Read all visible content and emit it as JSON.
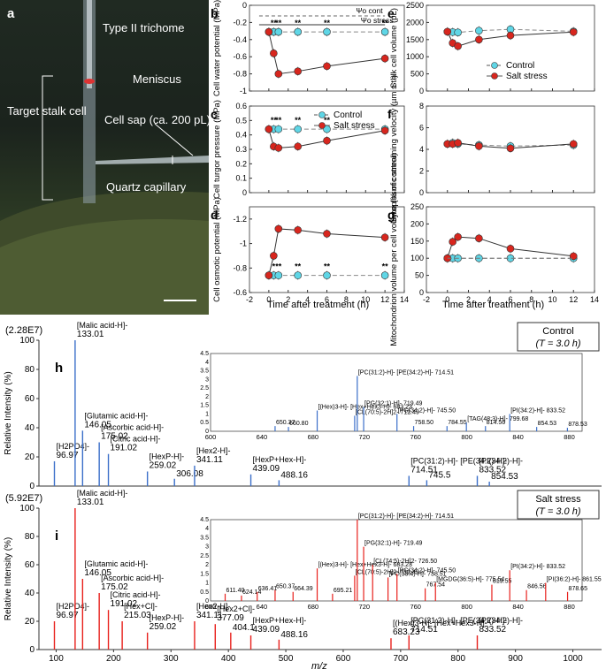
{
  "photo": {
    "panel_label": "a",
    "labels": [
      "Type II trichome",
      "Meniscus",
      "Target stalk cell",
      "Cell sap (ca. 200 pL)",
      "Quartz capillary"
    ]
  },
  "common": {
    "xlabel": "Time after treatment (h)",
    "xticks": [
      -2,
      0,
      2,
      4,
      6,
      8,
      10,
      12,
      14
    ],
    "legend": [
      "Control",
      "Salt stress"
    ],
    "colors": {
      "control": "#5fd6e6",
      "salt": "#d7261e"
    }
  },
  "chart_data": [
    {
      "id": "b",
      "type": "line",
      "ylabel": "Cell water potential (MPa)",
      "ylim": [
        -1.0,
        0.0
      ],
      "yticks": [
        0.0,
        -0.2,
        -0.4,
        -0.6,
        -0.8,
        -1.0
      ],
      "reversed": false,
      "x": [
        0,
        0.5,
        1,
        3,
        6,
        12
      ],
      "series": [
        {
          "name": "Control",
          "values": [
            -0.31,
            -0.31,
            -0.31,
            -0.31,
            -0.31,
            -0.31
          ]
        },
        {
          "name": "Salt stress",
          "values": [
            -0.31,
            -0.56,
            -0.8,
            -0.77,
            -0.71,
            -0.62
          ]
        }
      ],
      "sig": [
        {
          "x": 0.5,
          "label": "**"
        },
        {
          "x": 1,
          "label": "**"
        },
        {
          "x": 3,
          "label": "**"
        },
        {
          "x": 6,
          "label": "**"
        },
        {
          "x": 12,
          "label": "**"
        }
      ],
      "annotations": [
        "Ψo cont",
        "Ψo stress"
      ]
    },
    {
      "id": "c",
      "type": "line",
      "ylabel": "Cell turgor pressure (MPa)",
      "ylim": [
        0.0,
        0.6
      ],
      "yticks": [
        0.0,
        0.1,
        0.2,
        0.3,
        0.4,
        0.5,
        0.6
      ],
      "reversed": false,
      "x": [
        0,
        0.5,
        1,
        3,
        6,
        12
      ],
      "series": [
        {
          "name": "Control",
          "values": [
            0.44,
            0.44,
            0.44,
            0.44,
            0.44,
            0.44
          ]
        },
        {
          "name": "Salt stress",
          "values": [
            0.44,
            0.32,
            0.31,
            0.32,
            0.36,
            0.43
          ]
        }
      ],
      "sig": [
        {
          "x": 0.5,
          "label": "**"
        },
        {
          "x": 1,
          "label": "**"
        },
        {
          "x": 3,
          "label": "**"
        },
        {
          "x": 6,
          "label": "**"
        }
      ]
    },
    {
      "id": "d",
      "type": "line",
      "ylabel": "Cell osmotic potential (MPa)",
      "ylim": [
        -1.3,
        -0.6
      ],
      "yticks": [
        -0.6,
        -0.8,
        -1.0,
        -1.2
      ],
      "reversed": true,
      "x": [
        0,
        0.5,
        1,
        3,
        6,
        12
      ],
      "series": [
        {
          "name": "Control",
          "values": [
            -0.74,
            -0.74,
            -0.74,
            -0.74,
            -0.74,
            -0.74
          ]
        },
        {
          "name": "Salt stress",
          "values": [
            -0.74,
            -0.9,
            -1.12,
            -1.11,
            -1.08,
            -1.05
          ]
        }
      ],
      "sig": [
        {
          "x": 0.5,
          "label": "*"
        },
        {
          "x": 1,
          "label": "**"
        },
        {
          "x": 3,
          "label": "**"
        },
        {
          "x": 6,
          "label": "**"
        },
        {
          "x": 12,
          "label": "**"
        }
      ]
    },
    {
      "id": "e",
      "type": "line",
      "ylabel": "Stalk cell volume (pL)",
      "ylim": [
        0,
        2500
      ],
      "yticks": [
        0,
        500,
        1000,
        1500,
        2000,
        2500
      ],
      "reversed": false,
      "x": [
        0,
        0.5,
        1,
        3,
        6,
        12
      ],
      "series": [
        {
          "name": "Control",
          "values": [
            1730,
            1720,
            1710,
            1760,
            1800,
            1740
          ]
        },
        {
          "name": "Salt stress",
          "values": [
            1730,
            1400,
            1310,
            1500,
            1620,
            1720
          ]
        }
      ]
    },
    {
      "id": "f",
      "type": "line",
      "ylabel": "Cytoplasmic streaming velocity (µm s⁻¹)",
      "ylim": [
        0,
        8
      ],
      "yticks": [
        0,
        2,
        4,
        6,
        8
      ],
      "reversed": false,
      "x": [
        0,
        0.5,
        1,
        3,
        6,
        12
      ],
      "series": [
        {
          "name": "Control",
          "values": [
            4.5,
            4.6,
            4.5,
            4.4,
            4.3,
            4.4
          ]
        },
        {
          "name": "Salt stress",
          "values": [
            4.5,
            4.5,
            4.6,
            4.3,
            4.1,
            4.5
          ]
        }
      ]
    },
    {
      "id": "g",
      "type": "line",
      "ylabel": "Mitochondrion volume per cell volume (% of control)",
      "ylim": [
        0,
        250
      ],
      "yticks": [
        0,
        50,
        100,
        150,
        200,
        250
      ],
      "reversed": false,
      "x": [
        0,
        0.5,
        1,
        3,
        6,
        12
      ],
      "series": [
        {
          "name": "Control",
          "values": [
            100,
            100,
            100,
            100,
            100,
            100
          ]
        },
        {
          "name": "Salt stress",
          "values": [
            100,
            148,
            162,
            158,
            128,
            106
          ]
        }
      ]
    },
    {
      "id": "h",
      "type": "bar",
      "condition": "Control",
      "condition_time": "T = 3.0 h",
      "max_label": "(2.28E7)",
      "color": "#3b6fc9",
      "xlabel": "m/z",
      "ylabel": "Relative Intensity (%)",
      "xlim": [
        70,
        1050
      ],
      "ylim": [
        0,
        100
      ],
      "peaks": [
        {
          "mz": 96.97,
          "intensity": 17,
          "label": "[H2PO4]-"
        },
        {
          "mz": 133.01,
          "intensity": 100,
          "label": "[Malic acid-H]-"
        },
        {
          "mz": 146.05,
          "intensity": 38,
          "label": "[Glutamic acid-H]-"
        },
        {
          "mz": 175.02,
          "intensity": 30,
          "label": "[Ascorbic acid-H]-"
        },
        {
          "mz": 191.02,
          "intensity": 22,
          "label": "[Citric acid-H]-"
        },
        {
          "mz": 259.02,
          "intensity": 10,
          "label": "[HexP-H]-"
        },
        {
          "mz": 306.08,
          "intensity": 5,
          "label": ""
        },
        {
          "mz": 341.11,
          "intensity": 14,
          "label": "[Hex2-H]-"
        },
        {
          "mz": 439.09,
          "intensity": 8,
          "label": "[HexP+Hex-H]-"
        },
        {
          "mz": 488.16,
          "intensity": 4,
          "label": ""
        },
        {
          "mz": 714.51,
          "intensity": 7,
          "label": "[PC(31:2)-H]- [PE(34:2)-H]-"
        },
        {
          "mz": 745.5,
          "intensity": 4,
          "label": ""
        },
        {
          "mz": 833.52,
          "intensity": 7,
          "label": "[PI(34:2)-H]-"
        },
        {
          "mz": 854.53,
          "intensity": 3,
          "label": ""
        }
      ],
      "inset": {
        "xlim": [
          600,
          890
        ],
        "ylim": [
          0,
          4.5
        ],
        "xticks": [
          600,
          640,
          680,
          720,
          760,
          800,
          840,
          880
        ],
        "yticks": [
          0,
          0.5,
          1,
          1.5,
          2,
          2.5,
          3,
          3.5,
          4,
          4.5
        ],
        "peaks": [
          {
            "mz": 650.37,
            "intensity": 0.3,
            "label": "650.37"
          },
          {
            "mz": 660.8,
            "intensity": 0.25,
            "label": "660.80"
          },
          {
            "mz": 683.23,
            "intensity": 1.2,
            "label": "[(Hex)3-H]- [Hex+Hex3-H]- 683.23"
          },
          {
            "mz": 712.49,
            "intensity": 0.9,
            "label": "[CL(70:5)-2H]2- 712.49"
          },
          {
            "mz": 714.51,
            "intensity": 3.2,
            "label": "[PC(31:2)-H]- [PE(34:2)-H]- 714.51"
          },
          {
            "mz": 719.49,
            "intensity": 1.4,
            "label": "[PG(32:1)-H]- 719.49"
          },
          {
            "mz": 745.5,
            "intensity": 1.0,
            "label": "[PG(34:2)-H]- 745.50"
          },
          {
            "mz": 758.5,
            "intensity": 0.3,
            "label": "758.50"
          },
          {
            "mz": 784.55,
            "intensity": 0.3,
            "label": "784.55"
          },
          {
            "mz": 799.68,
            "intensity": 0.5,
            "label": "[TAG(48:3)-H]- 799.68"
          },
          {
            "mz": 814.56,
            "intensity": 0.3,
            "label": "814.56"
          },
          {
            "mz": 833.52,
            "intensity": 1.0,
            "label": "[PI(34:2)-H]- 833.52"
          },
          {
            "mz": 854.53,
            "intensity": 0.25,
            "label": "854.53"
          },
          {
            "mz": 878.53,
            "intensity": 0.2,
            "label": "878.53"
          }
        ]
      }
    },
    {
      "id": "i",
      "type": "bar",
      "condition": "Salt stress",
      "condition_time": "T = 3.0 h",
      "max_label": "(5.92E7)",
      "color": "#e8201c",
      "xlabel": "m/z",
      "ylabel": "Relative Intensity (%)",
      "xlim": [
        70,
        1050
      ],
      "ylim": [
        0,
        100
      ],
      "peaks": [
        {
          "mz": 96.97,
          "intensity": 20,
          "label": "[H2PO4]-"
        },
        {
          "mz": 133.01,
          "intensity": 100,
          "label": "[Malic acid-H]-"
        },
        {
          "mz": 146.05,
          "intensity": 50,
          "label": "[Glutamic acid-H]-"
        },
        {
          "mz": 175.02,
          "intensity": 40,
          "label": "[Ascorbic acid-H]-"
        },
        {
          "mz": 191.02,
          "intensity": 28,
          "label": "[Citric acid-H]-"
        },
        {
          "mz": 215.03,
          "intensity": 20,
          "label": "[Hex+Cl]-"
        },
        {
          "mz": 259.02,
          "intensity": 12,
          "label": "[HexP-H]-"
        },
        {
          "mz": 341.11,
          "intensity": 20,
          "label": "[Hex2-H]-"
        },
        {
          "mz": 377.09,
          "intensity": 18,
          "label": "[Hex2+Cl]-"
        },
        {
          "mz": 404.1,
          "intensity": 12,
          "label": ""
        },
        {
          "mz": 439.09,
          "intensity": 10,
          "label": "[HexP+Hex-H]-"
        },
        {
          "mz": 488.16,
          "intensity": 7,
          "label": ""
        },
        {
          "mz": 683.23,
          "intensity": 8,
          "label": "[(Hex)3-H]- [Hex+Hex3-H]-"
        },
        {
          "mz": 714.51,
          "intensity": 10,
          "label": "[PC(31:2)-H]- [PE(34:2)-H]-"
        },
        {
          "mz": 833.52,
          "intensity": 10,
          "label": "[PI(34:2)-H]-"
        }
      ],
      "inset": {
        "xlim": [
          600,
          890
        ],
        "ylim": [
          0,
          4.5
        ],
        "xticks": [
          600,
          640,
          680,
          720,
          760,
          800,
          840,
          880
        ],
        "yticks": [
          0,
          0.5,
          1,
          1.5,
          2,
          2.5,
          3,
          3.5,
          4,
          4.5
        ],
        "peaks": [
          {
            "mz": 611.4,
            "intensity": 0.4,
            "label": "611.40"
          },
          {
            "mz": 624.14,
            "intensity": 0.3,
            "label": "624.14"
          },
          {
            "mz": 636.41,
            "intensity": 0.5,
            "label": "636.41"
          },
          {
            "mz": 650.37,
            "intensity": 0.6,
            "label": "650.37"
          },
          {
            "mz": 664.39,
            "intensity": 0.5,
            "label": "664.39"
          },
          {
            "mz": 683.23,
            "intensity": 1.8,
            "label": "[(Hex)3-H]- [Hex+Hex3-H]- 683.23"
          },
          {
            "mz": 695.21,
            "intensity": 0.4,
            "label": "695.21"
          },
          {
            "mz": 712.49,
            "intensity": 1.4,
            "label": "[CL(70:5)-2H]2- 712.49"
          },
          {
            "mz": 714.51,
            "intensity": 4.5,
            "label": "[PC(31:2)-H]- [PE(34:2)-H]- 714.51"
          },
          {
            "mz": 719.49,
            "intensity": 3.0,
            "label": "[PG(32:1)-H]- 719.49"
          },
          {
            "mz": 726.5,
            "intensity": 2.0,
            "label": "[CL(74:5)-2H]2- 726.50"
          },
          {
            "mz": 738.51,
            "intensity": 1.3,
            "label": "[PC(33:4)-H]- 738.51"
          },
          {
            "mz": 745.5,
            "intensity": 1.5,
            "label": "[PG(34:2)-H]- 745.50"
          },
          {
            "mz": 767.54,
            "intensity": 0.7,
            "label": "767.54"
          },
          {
            "mz": 775.54,
            "intensity": 1.0,
            "label": "[MGDG(36:5)-H]- 775.54"
          },
          {
            "mz": 819.55,
            "intensity": 0.9,
            "label": "819.55"
          },
          {
            "mz": 833.52,
            "intensity": 1.7,
            "label": "[PI(34:2)-H]- 833.52"
          },
          {
            "mz": 846.56,
            "intensity": 0.6,
            "label": "846.56"
          },
          {
            "mz": 861.55,
            "intensity": 1.0,
            "label": "[PI(36:2)-H]- 861.55"
          },
          {
            "mz": 878.65,
            "intensity": 0.5,
            "label": "878.65"
          }
        ]
      }
    }
  ]
}
